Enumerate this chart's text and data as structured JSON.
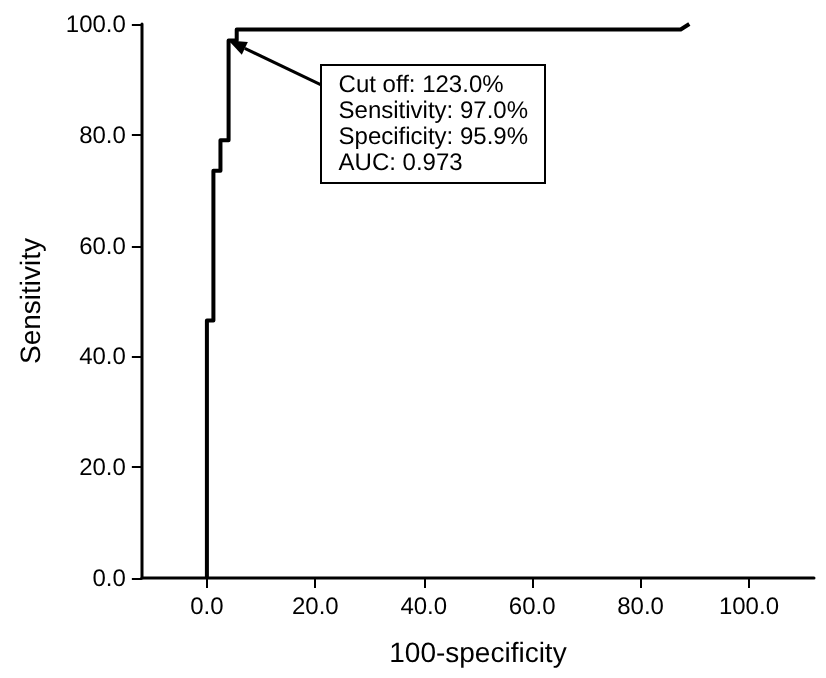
{
  "chart_data": {
    "type": "line",
    "xlabel": "100-specificity",
    "ylabel": "Sensitivity",
    "x": [
      0,
      0,
      1.2,
      1.2,
      2.5,
      2.5,
      4,
      4,
      5.5,
      5.5,
      87.4,
      89
    ],
    "series": [
      {
        "color": "#000000",
        "values": [
          0,
          46.5,
          46.5,
          73.5,
          73.5,
          79,
          79,
          97,
          97,
          99,
          99,
          100
        ]
      }
    ],
    "xlim": [
      -12,
      112
    ],
    "xticks": [
      {
        "value": 0,
        "label": "0.0"
      },
      {
        "value": 20,
        "label": "20.0"
      },
      {
        "value": 40,
        "label": "40.0"
      },
      {
        "value": 60,
        "label": "60.0"
      },
      {
        "value": 80,
        "label": "80.0"
      },
      {
        "value": 100,
        "label": "100.0"
      }
    ],
    "ylim": [
      0,
      100
    ],
    "yticks": [
      {
        "value": 0,
        "label": "0.0"
      },
      {
        "value": 20,
        "label": "20.0"
      },
      {
        "value": 40,
        "label": "40.0"
      },
      {
        "value": 60,
        "label": "60.0"
      },
      {
        "value": 80,
        "label": "80.0"
      },
      {
        "value": 100,
        "label": "100.0"
      }
    ],
    "annotations": [
      {
        "text": "Cut off: 123.0%\nSensitivity: 97.0%\nSpecificity: 95.9%\nAUC: 0.973",
        "x": 4,
        "y": 97
      }
    ],
    "grid": false,
    "marker": "none",
    "line_style": "solid"
  }
}
